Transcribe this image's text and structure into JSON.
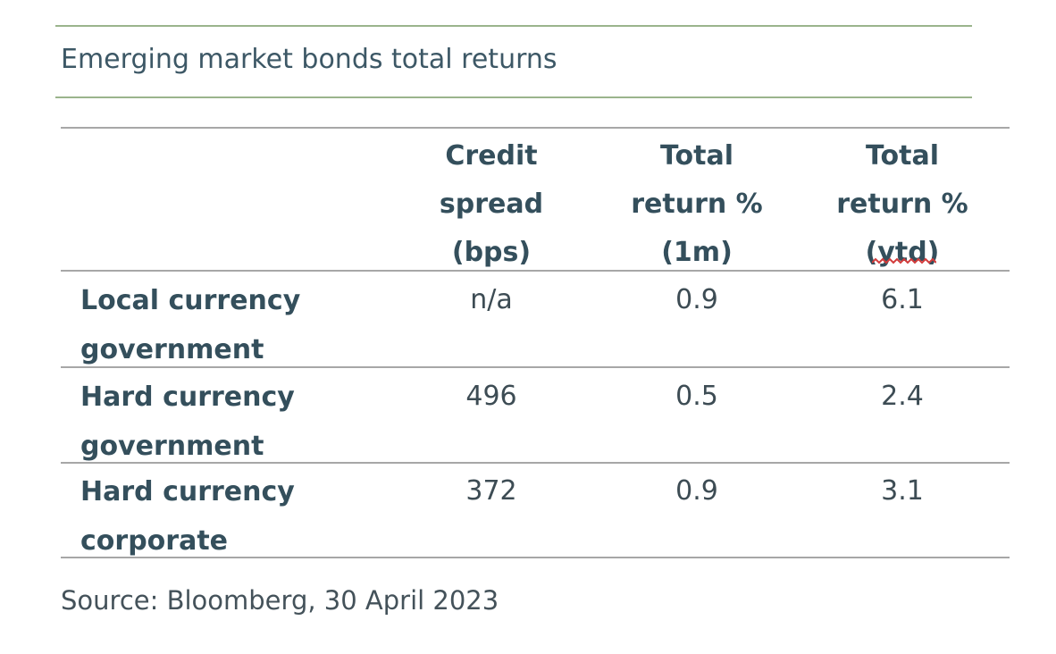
{
  "chart_data": {
    "type": "table",
    "title": "Emerging market bonds total returns",
    "columns": [
      {
        "lines": [
          "Credit",
          "spread",
          "(bps)"
        ]
      },
      {
        "lines": [
          "Total",
          "return %",
          "(1m)"
        ]
      },
      {
        "lines": [
          "Total",
          "return %",
          "(ytd)"
        ]
      }
    ],
    "rows": [
      {
        "label_lines": [
          "Local currency",
          "government"
        ],
        "values": [
          "n/a",
          "0.9",
          "6.1"
        ]
      },
      {
        "label_lines": [
          "Hard currency",
          "government"
        ],
        "values": [
          "496",
          "0.5",
          "2.4"
        ]
      },
      {
        "label_lines": [
          "Hard currency",
          "corporate"
        ],
        "values": [
          "372",
          "0.9",
          "3.1"
        ]
      }
    ],
    "source": "Source: Bloomberg, 30 April 2023"
  },
  "colors": {
    "title_rule": "#9ab48c",
    "table_rule": "#a7a7a7",
    "header_text": "#344f5c",
    "body_text": "#3d4c54",
    "spellcheck_underline": "#d23b3b"
  }
}
